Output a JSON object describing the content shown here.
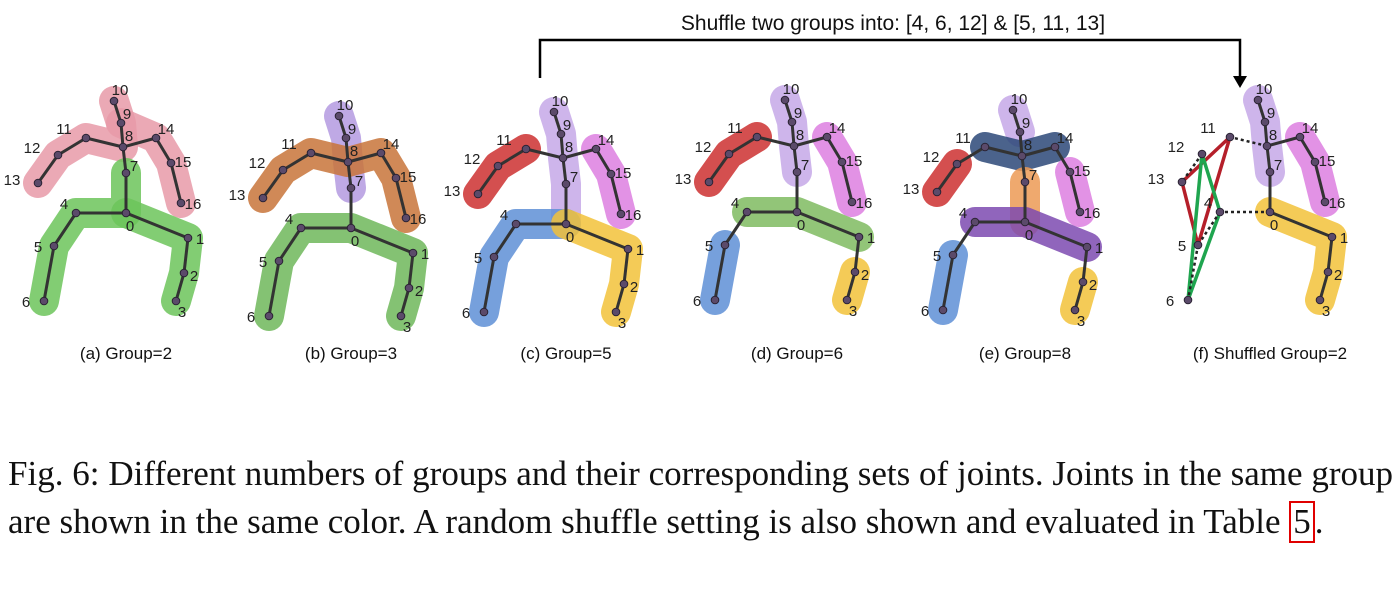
{
  "figure": {
    "shuffle_note": "Shuffle two groups into: [4, 6, 12] & [5, 11, 13]",
    "panels": [
      {
        "caption": "(a) Group=2",
        "highlights": [
          {
            "color": "#e79aa8",
            "joints": [
              10,
              9,
              8,
              11,
              12,
              13
            ]
          },
          {
            "color": "#e79aa8",
            "joints": [
              9,
              14,
              15,
              16
            ]
          },
          {
            "color": "#6cc45a",
            "joints": [
              7,
              0,
              4,
              5,
              6
            ]
          },
          {
            "color": "#6cc45a",
            "joints": [
              0,
              1,
              2,
              3
            ]
          }
        ]
      },
      {
        "caption": "(b) Group=3",
        "highlights": [
          {
            "color": "#b49ae0",
            "joints": [
              10,
              9,
              8,
              7
            ]
          },
          {
            "color": "#c8743a",
            "joints": [
              13,
              12,
              11,
              8,
              14,
              15,
              16
            ]
          },
          {
            "color": "#6fb75a",
            "joints": [
              6,
              5,
              4,
              0,
              1,
              2,
              3
            ]
          }
        ]
      },
      {
        "caption": "(c) Group=5",
        "highlights": [
          {
            "color": "#c5a8e8",
            "joints": [
              10,
              9,
              8,
              7,
              0
            ]
          },
          {
            "color": "#cc3030",
            "joints": [
              11,
              12,
              13
            ]
          },
          {
            "color": "#dd7fe0",
            "joints": [
              14,
              15,
              16
            ]
          },
          {
            "color": "#5e8fd6",
            "joints": [
              0,
              4,
              5,
              6
            ]
          },
          {
            "color": "#f2c23a",
            "joints": [
              0,
              1,
              2,
              3
            ]
          }
        ]
      },
      {
        "caption": "(d) Group=6",
        "highlights": [
          {
            "color": "#c5a8e8",
            "joints": [
              10,
              9,
              8,
              7
            ]
          },
          {
            "color": "#cc3030",
            "joints": [
              11,
              12,
              13
            ]
          },
          {
            "color": "#dd7fe0",
            "joints": [
              14,
              15,
              16
            ]
          },
          {
            "color": "#7fbb60",
            "joints": [
              4,
              0,
              1
            ]
          },
          {
            "color": "#5e8fd6",
            "joints": [
              5,
              6
            ]
          },
          {
            "color": "#f2c23a",
            "joints": [
              2,
              3
            ]
          }
        ]
      },
      {
        "caption": "(e) Group=8",
        "highlights": [
          {
            "color": "#c5a8e8",
            "joints": [
              10,
              9
            ]
          },
          {
            "color": "#2c4878",
            "joints": [
              11,
              8,
              14
            ]
          },
          {
            "color": "#cc3030",
            "joints": [
              12,
              13
            ]
          },
          {
            "color": "#dd7fe0",
            "joints": [
              15,
              16
            ]
          },
          {
            "color": "#ec9a55",
            "joints": [
              7,
              0
            ]
          },
          {
            "color": "#7c4ab0",
            "joints": [
              4,
              0,
              1
            ]
          },
          {
            "color": "#5e8fd6",
            "joints": [
              5,
              6
            ]
          },
          {
            "color": "#f2c23a",
            "joints": [
              2,
              3
            ]
          }
        ]
      },
      {
        "caption": "(f) Shuffled Group=2",
        "highlights": [
          {
            "color": "#c5a8e8",
            "joints": [
              10,
              9,
              8,
              7
            ]
          },
          {
            "color": "#dd7fe0",
            "joints": [
              14,
              15,
              16
            ]
          },
          {
            "color": "#f2c23a",
            "joints": [
              0,
              1,
              2,
              3
            ]
          }
        ],
        "red_joints": [
          11,
          13,
          5
        ],
        "green_joints": [
          12,
          4,
          6
        ]
      }
    ]
  },
  "caption": {
    "text": "Fig. 6: Different numbers of groups and their corresponding sets of joints. Joints in the same group are shown in the same color. A random shuffle setting is also shown and evaluated in Table ",
    "ref": "5",
    "end": "."
  }
}
